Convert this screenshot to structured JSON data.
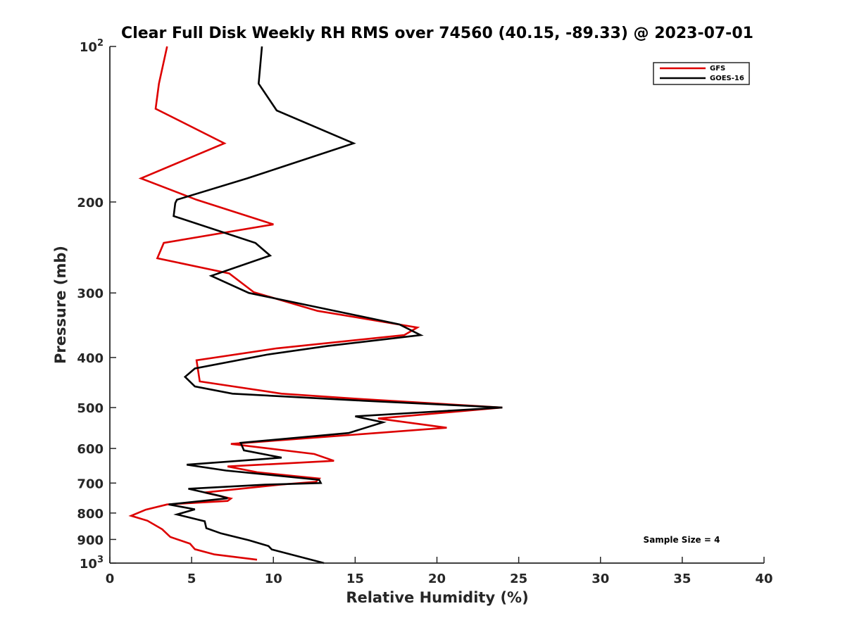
{
  "chart_data": {
    "type": "line",
    "title": "Clear Full Disk Weekly RH RMS over 74560 (40.15, -89.33) @ 2023-07-01",
    "xlabel": "Relative Humidity (%)",
    "ylabel": "Pressure (mb)",
    "xlim": [
      0,
      40
    ],
    "ylim": [
      1000,
      100
    ],
    "yscale": "log",
    "y_reversed": true,
    "grid": false,
    "legend_position": "top-right",
    "x_ticks": [
      {
        "value": 0,
        "label": "0"
      },
      {
        "value": 5,
        "label": "5"
      },
      {
        "value": 10,
        "label": "10"
      },
      {
        "value": 15,
        "label": "15"
      },
      {
        "value": 20,
        "label": "20"
      },
      {
        "value": 25,
        "label": "25"
      },
      {
        "value": 30,
        "label": "30"
      },
      {
        "value": 35,
        "label": "35"
      },
      {
        "value": 40,
        "label": "40"
      }
    ],
    "y_ticks": [
      {
        "value": 100,
        "base": "10",
        "exp": "2"
      },
      {
        "value": 200,
        "label": "200"
      },
      {
        "value": 300,
        "label": "300"
      },
      {
        "value": 400,
        "label": "400"
      },
      {
        "value": 500,
        "label": "500"
      },
      {
        "value": 600,
        "label": "600"
      },
      {
        "value": 700,
        "label": "700"
      },
      {
        "value": 800,
        "label": "800"
      },
      {
        "value": 900,
        "label": "900"
      },
      {
        "value": 1000,
        "base": "10",
        "exp": "3"
      }
    ],
    "annotation": "Sample Size = 4",
    "series": [
      {
        "name": "GFS",
        "color": "#dd0000",
        "points": [
          [
            3.5,
            100
          ],
          [
            3.0,
            118
          ],
          [
            2.8,
            132
          ],
          [
            7.0,
            154
          ],
          [
            1.9,
            180
          ],
          [
            5.3,
            198
          ],
          [
            10.0,
            221
          ],
          [
            3.3,
            240
          ],
          [
            2.9,
            257
          ],
          [
            7.3,
            275
          ],
          [
            8.8,
            299
          ],
          [
            12.7,
            325
          ],
          [
            18.8,
            350
          ],
          [
            18.0,
            362
          ],
          [
            10.2,
            384
          ],
          [
            5.3,
            405
          ],
          [
            5.5,
            445
          ],
          [
            10.5,
            470
          ],
          [
            15.2,
            481
          ],
          [
            24.0,
            500
          ],
          [
            16.4,
            525
          ],
          [
            20.6,
            547
          ],
          [
            14.7,
            565
          ],
          [
            7.4,
            588
          ],
          [
            12.5,
            615
          ],
          [
            13.7,
            634
          ],
          [
            7.2,
            650
          ],
          [
            9.0,
            667
          ],
          [
            12.8,
            686
          ],
          [
            12.6,
            696
          ],
          [
            10.4,
            705
          ],
          [
            5.8,
            730
          ],
          [
            7.4,
            750
          ],
          [
            7.2,
            758
          ],
          [
            3.5,
            770
          ],
          [
            2.2,
            788
          ],
          [
            1.3,
            810
          ],
          [
            2.3,
            828
          ],
          [
            3.2,
            860
          ],
          [
            3.7,
            890
          ],
          [
            4.9,
            917
          ],
          [
            5.2,
            940
          ],
          [
            6.4,
            962
          ],
          [
            9.0,
            985
          ]
        ]
      },
      {
        "name": "GOES-16",
        "color": "#000000",
        "points": [
          [
            9.3,
            100
          ],
          [
            9.1,
            118
          ],
          [
            10.2,
            133
          ],
          [
            14.9,
            154
          ],
          [
            10.3,
            172
          ],
          [
            8.4,
            180
          ],
          [
            4.1,
            198
          ],
          [
            4.0,
            201
          ],
          [
            3.9,
            213
          ],
          [
            8.9,
            240
          ],
          [
            9.8,
            254
          ],
          [
            6.2,
            278
          ],
          [
            8.5,
            300
          ],
          [
            17.7,
            345
          ],
          [
            19.0,
            362
          ],
          [
            13.3,
            380
          ],
          [
            9.6,
            395
          ],
          [
            5.2,
            420
          ],
          [
            4.6,
            436
          ],
          [
            5.2,
            455
          ],
          [
            7.5,
            470
          ],
          [
            15.5,
            485
          ],
          [
            24.0,
            500
          ],
          [
            15.0,
            520
          ],
          [
            16.7,
            534
          ],
          [
            14.6,
            560
          ],
          [
            8.0,
            585
          ],
          [
            8.2,
            605
          ],
          [
            10.5,
            625
          ],
          [
            4.7,
            645
          ],
          [
            7.1,
            662
          ],
          [
            12.8,
            690
          ],
          [
            12.9,
            700
          ],
          [
            9.5,
            705
          ],
          [
            4.8,
            718
          ],
          [
            6.8,
            742
          ],
          [
            7.2,
            749
          ],
          [
            3.6,
            770
          ],
          [
            5.2,
            787
          ],
          [
            4.1,
            805
          ],
          [
            5.8,
            830
          ],
          [
            5.9,
            856
          ],
          [
            6.8,
            876
          ],
          [
            8.5,
            903
          ],
          [
            9.7,
            927
          ],
          [
            9.9,
            941
          ],
          [
            13.1,
            1000
          ]
        ]
      }
    ]
  }
}
